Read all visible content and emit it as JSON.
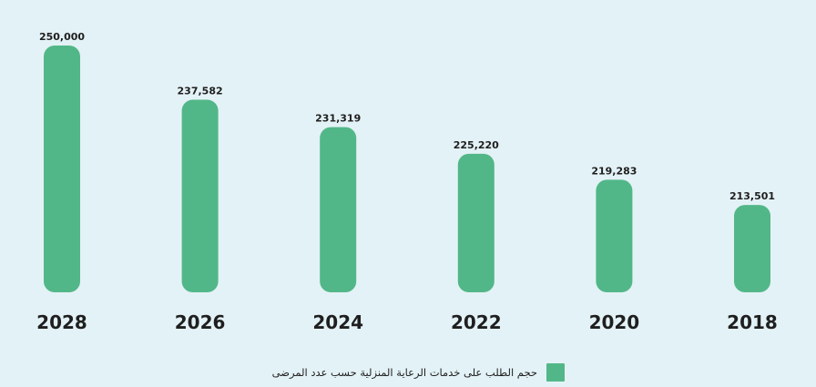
{
  "chart_data": {
    "type": "bar",
    "categories": [
      "2028",
      "2026",
      "2024",
      "2022",
      "2020",
      "2018"
    ],
    "series": [
      {
        "name": "حجم الطلب على خدمات الرعاية المنزلية حسب عدد المرضى",
        "values": [
          250000,
          237582,
          231319,
          225220,
          219283,
          213501
        ],
        "labels": [
          "250,000",
          "237,582",
          "231,319",
          "225,220",
          "219,283",
          "213,501"
        ]
      }
    ],
    "ylim": [
      193500,
      250000
    ],
    "grid": false,
    "legend_position": "bottom",
    "colors": {
      "bar": "#52b788",
      "background": "#e3f2f6",
      "text": "#1f1f1f"
    }
  }
}
